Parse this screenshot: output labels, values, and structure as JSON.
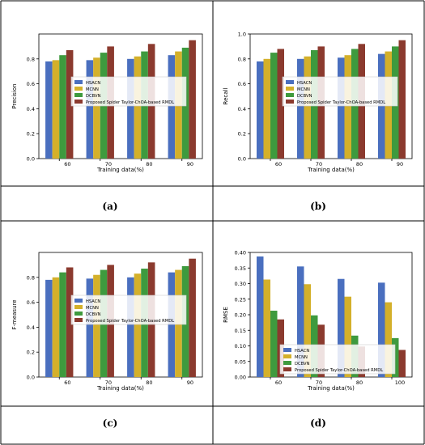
{
  "legend_labels": [
    "HSACN",
    "MCNN",
    "DCBVN",
    "Proposed Spider Taylor-ChOA-based RMDL"
  ],
  "series_colors": [
    "#4a6fbf",
    "#d4b02a",
    "#3e9a3e",
    "#8b3a2e"
  ],
  "chart_data": [
    {
      "panel": "a",
      "type": "bar",
      "caption": "(a)",
      "ylabel": "Precision",
      "xlabel": "Training data(%)",
      "categories": [
        "60",
        "70",
        "80",
        "90"
      ],
      "ylim": [
        0,
        1.0
      ],
      "yticks": [
        "0.0",
        "0.2",
        "0.4",
        "0.6",
        "0.8"
      ],
      "ytick_values": [
        0,
        0.2,
        0.4,
        0.6,
        0.8
      ],
      "legend_position": "center-left",
      "series": [
        {
          "name": "HSACN",
          "values": [
            0.78,
            0.79,
            0.8,
            0.83
          ]
        },
        {
          "name": "MCNN",
          "values": [
            0.79,
            0.81,
            0.82,
            0.86
          ]
        },
        {
          "name": "DCBVN",
          "values": [
            0.83,
            0.85,
            0.86,
            0.89
          ]
        },
        {
          "name": "Proposed Spider Taylor-ChOA-based RMDL",
          "values": [
            0.87,
            0.9,
            0.92,
            0.95
          ]
        }
      ]
    },
    {
      "panel": "b",
      "type": "bar",
      "caption": "(b)",
      "ylabel": "Recall",
      "xlabel": "Training data(%)",
      "categories": [
        "60",
        "70",
        "80",
        "90"
      ],
      "ylim": [
        0,
        1.0
      ],
      "yticks": [
        "0.0",
        "0.2",
        "0.4",
        "0.6",
        "0.8",
        "1.0"
      ],
      "ytick_values": [
        0,
        0.2,
        0.4,
        0.6,
        0.8,
        1.0
      ],
      "legend_position": "center-left",
      "series": [
        {
          "name": "HSACN",
          "values": [
            0.78,
            0.8,
            0.81,
            0.84
          ]
        },
        {
          "name": "MCNN",
          "values": [
            0.8,
            0.82,
            0.83,
            0.86
          ]
        },
        {
          "name": "DCBVN",
          "values": [
            0.85,
            0.87,
            0.88,
            0.9
          ]
        },
        {
          "name": "Proposed Spider Taylor-ChOA-based RMDL",
          "values": [
            0.88,
            0.9,
            0.92,
            0.95
          ]
        }
      ]
    },
    {
      "panel": "c",
      "type": "bar",
      "caption": "(c)",
      "ylabel": "F-measure",
      "xlabel": "Training data(%)",
      "categories": [
        "60",
        "70",
        "80",
        "90"
      ],
      "ylim": [
        0,
        1.0
      ],
      "yticks": [
        "0.0",
        "0.2",
        "0.4",
        "0.6",
        "0.8"
      ],
      "ytick_values": [
        0,
        0.2,
        0.4,
        0.6,
        0.8
      ],
      "legend_position": "center-left",
      "series": [
        {
          "name": "HSACN",
          "values": [
            0.78,
            0.79,
            0.8,
            0.84
          ]
        },
        {
          "name": "MCNN",
          "values": [
            0.8,
            0.82,
            0.83,
            0.86
          ]
        },
        {
          "name": "DCBVN",
          "values": [
            0.84,
            0.86,
            0.87,
            0.89
          ]
        },
        {
          "name": "Proposed Spider Taylor-ChOA-based RMDL",
          "values": [
            0.88,
            0.9,
            0.92,
            0.95
          ]
        }
      ]
    },
    {
      "panel": "d",
      "type": "bar",
      "caption": "(d)",
      "ylabel": "RMSE",
      "xlabel": "Training data(%)",
      "categories": [
        "60",
        "70",
        "80",
        "100"
      ],
      "ylim": [
        0,
        0.4
      ],
      "yticks": [
        "0.00",
        "0.05",
        "0.10",
        "0.15",
        "0.20",
        "0.25",
        "0.30",
        "0.35",
        "0.40"
      ],
      "ytick_values": [
        0,
        0.05,
        0.1,
        0.15,
        0.2,
        0.25,
        0.3,
        0.35,
        0.4
      ],
      "legend_position": "bottom-center",
      "series": [
        {
          "name": "HSACN",
          "values": [
            0.387,
            0.355,
            0.315,
            0.303
          ]
        },
        {
          "name": "MCNN",
          "values": [
            0.313,
            0.298,
            0.258,
            0.24
          ]
        },
        {
          "name": "DCBVN",
          "values": [
            0.213,
            0.198,
            0.133,
            0.125
          ]
        },
        {
          "name": "Proposed Spider Taylor-ChOA-based RMDL",
          "values": [
            0.185,
            0.168,
            0.098,
            0.087
          ]
        }
      ]
    }
  ]
}
